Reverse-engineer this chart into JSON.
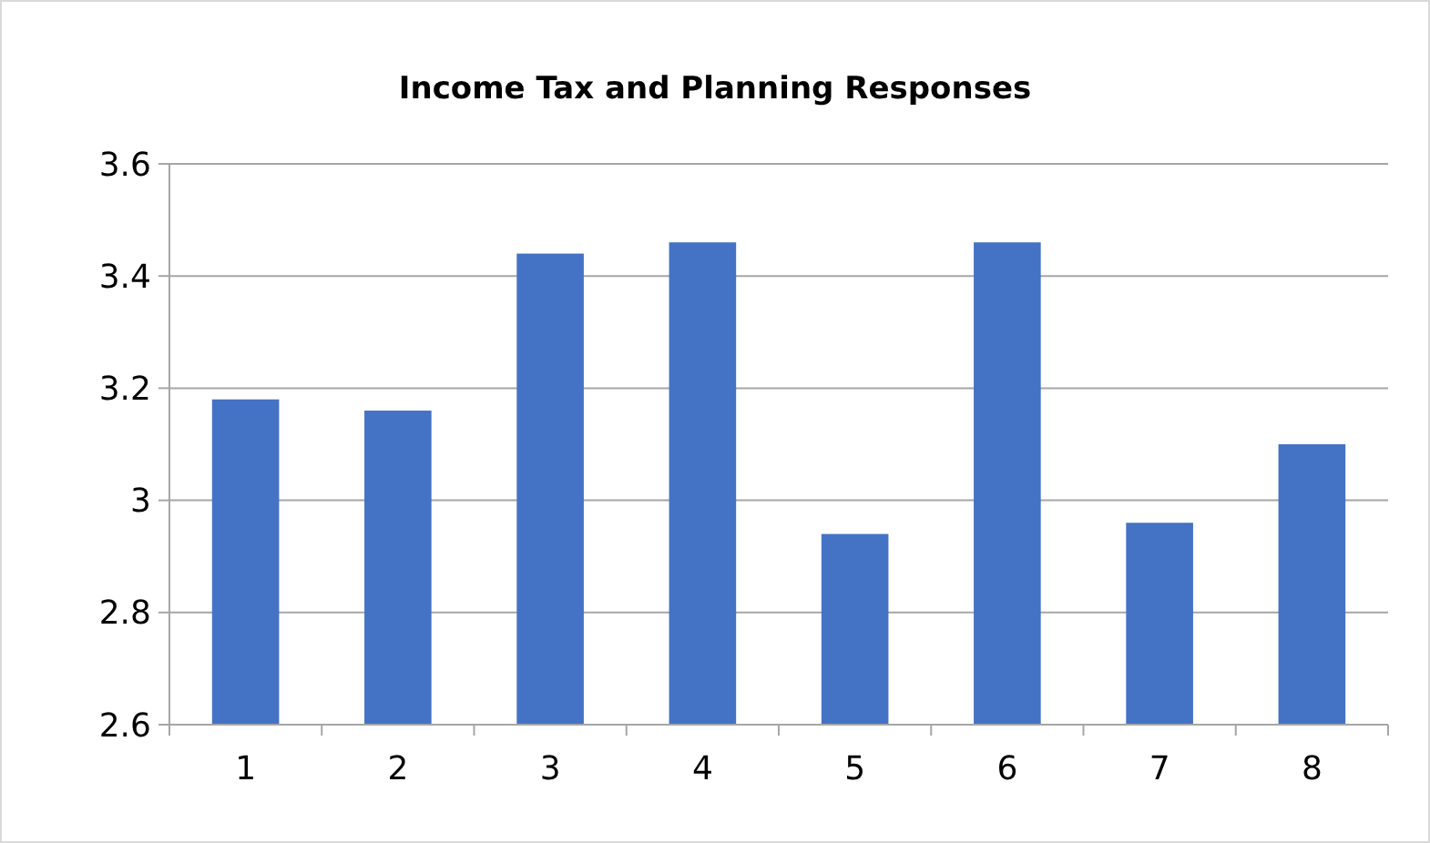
{
  "chart_data": {
    "type": "bar",
    "title": "Income Tax and Planning Responses",
    "categories": [
      "1",
      "2",
      "3",
      "4",
      "5",
      "6",
      "7",
      "8"
    ],
    "values": [
      3.18,
      3.16,
      3.44,
      3.46,
      2.94,
      3.46,
      2.96,
      3.1
    ],
    "color": "#4472c4",
    "ylim": [
      2.6,
      3.6
    ],
    "yticks": [
      2.6,
      2.8,
      3,
      3.2,
      3.4,
      3.6
    ],
    "grid": "y"
  }
}
